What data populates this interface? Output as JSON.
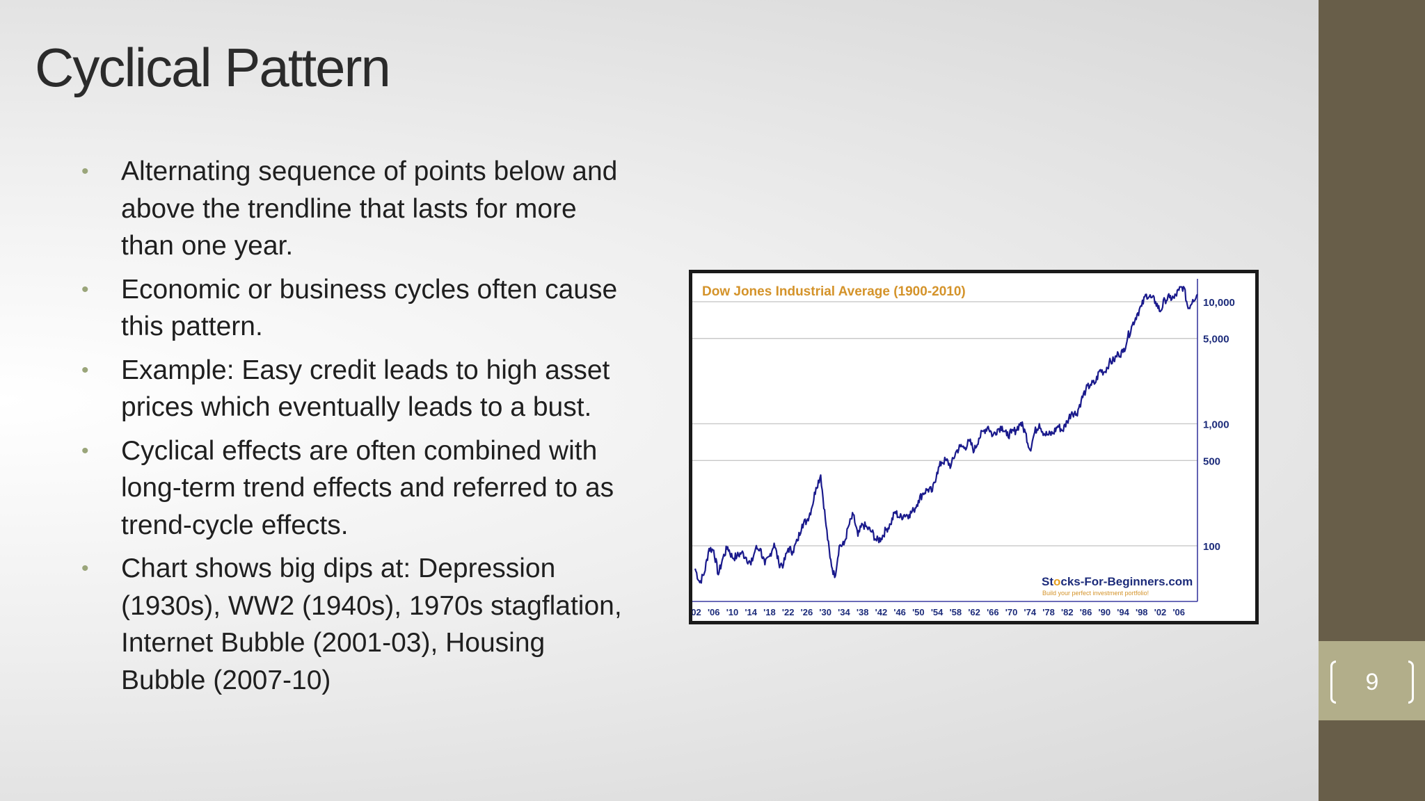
{
  "slide": {
    "title": "Cyclical Pattern",
    "page_number": "9",
    "accent_color": "#685e49",
    "page_box_color": "#b2ae8a",
    "bullet_color": "#9aa57a"
  },
  "bullets": [
    "Alternating sequence of points below and above the trendline that lasts for more than one year.",
    "Economic or business cycles often cause this pattern.",
    "Example: Easy credit leads to high asset prices which eventually leads to a bust.",
    "Cyclical effects are often combined with long-term trend effects and referred to as trend-cycle effects.",
    "Chart shows big dips at: Depression (1930s), WW2 (1940s), 1970s stagflation, Internet Bubble (2001-03), Housing Bubble (2007-10)"
  ],
  "chart_data": {
    "type": "line",
    "title": "Dow Jones Industrial Average (1900-2010)",
    "y_scale": "log",
    "ylim": [
      35,
      15000
    ],
    "xlim": [
      1902,
      2010
    ],
    "grid": true,
    "line_color": "#1a1a8c",
    "y_ticks": [
      {
        "value": 100,
        "label": "100"
      },
      {
        "value": 500,
        "label": "500"
      },
      {
        "value": 1000,
        "label": "1,000"
      },
      {
        "value": 5000,
        "label": "5,000"
      },
      {
        "value": 10000,
        "label": "10,000"
      }
    ],
    "x_ticks": [
      "'02",
      "'06",
      "'10",
      "'14",
      "'18",
      "'22",
      "'26",
      "'30",
      "'34",
      "'38",
      "'42",
      "'46",
      "'50",
      "'54",
      "'58",
      "'62",
      "'66",
      "'70",
      "'74",
      "'78",
      "'82",
      "'86",
      "'90",
      "'94",
      "'98",
      "'02",
      "'06"
    ],
    "x_tick_years": [
      1902,
      1906,
      1910,
      1914,
      1918,
      1922,
      1926,
      1930,
      1934,
      1938,
      1942,
      1946,
      1950,
      1954,
      1958,
      1962,
      1966,
      1970,
      1974,
      1978,
      1982,
      1986,
      1990,
      1994,
      1998,
      2002,
      2006
    ],
    "series": [
      {
        "x": [
          1902,
          1903,
          1904,
          1905,
          1906,
          1907,
          1908,
          1909,
          1910,
          1911,
          1912,
          1913,
          1914,
          1915,
          1916,
          1917,
          1918,
          1919,
          1920,
          1921,
          1922,
          1923,
          1924,
          1925,
          1926,
          1927,
          1928,
          1929,
          1930,
          1931,
          1932,
          1933,
          1934,
          1935,
          1936,
          1937,
          1938,
          1939,
          1940,
          1941,
          1942,
          1943,
          1944,
          1945,
          1946,
          1947,
          1948,
          1949,
          1950,
          1951,
          1952,
          1953,
          1954,
          1955,
          1956,
          1957,
          1958,
          1959,
          1960,
          1961,
          1962,
          1963,
          1964,
          1965,
          1966,
          1967,
          1968,
          1969,
          1970,
          1971,
          1972,
          1973,
          1974,
          1975,
          1976,
          1977,
          1978,
          1979,
          1980,
          1981,
          1982,
          1983,
          1984,
          1985,
          1986,
          1987,
          1988,
          1989,
          1990,
          1991,
          1992,
          1993,
          1994,
          1995,
          1996,
          1997,
          1998,
          1999,
          2000,
          2001,
          2002,
          2003,
          2004,
          2005,
          2006,
          2007,
          2008,
          2009,
          2010
        ],
        "values": [
          65,
          50,
          60,
          95,
          92,
          58,
          80,
          98,
          80,
          82,
          88,
          80,
          70,
          95,
          95,
          70,
          82,
          105,
          72,
          70,
          95,
          90,
          110,
          150,
          160,
          200,
          300,
          380,
          165,
          80,
          55,
          100,
          102,
          145,
          180,
          120,
          150,
          140,
          130,
          110,
          115,
          135,
          150,
          190,
          170,
          180,
          180,
          195,
          235,
          270,
          290,
          280,
          400,
          485,
          500,
          450,
          580,
          650,
          640,
          720,
          600,
          760,
          870,
          950,
          800,
          900,
          950,
          800,
          840,
          890,
          1020,
          850,
          610,
          850,
          1000,
          830,
          810,
          840,
          960,
          880,
          1050,
          1250,
          1200,
          1550,
          1900,
          2100,
          2150,
          2750,
          2650,
          3150,
          3300,
          3750,
          3850,
          5100,
          6450,
          7900,
          9200,
          11500,
          10800,
          10000,
          8300,
          10400,
          10800,
          10700,
          12400,
          13300,
          8800,
          10400,
          11500
        ]
      }
    ]
  },
  "chart_brand": {
    "pre": "St",
    "o": "o",
    "post": "cks-For-Beginners.com",
    "tagline": "Build your perfect investment portfolio!"
  }
}
